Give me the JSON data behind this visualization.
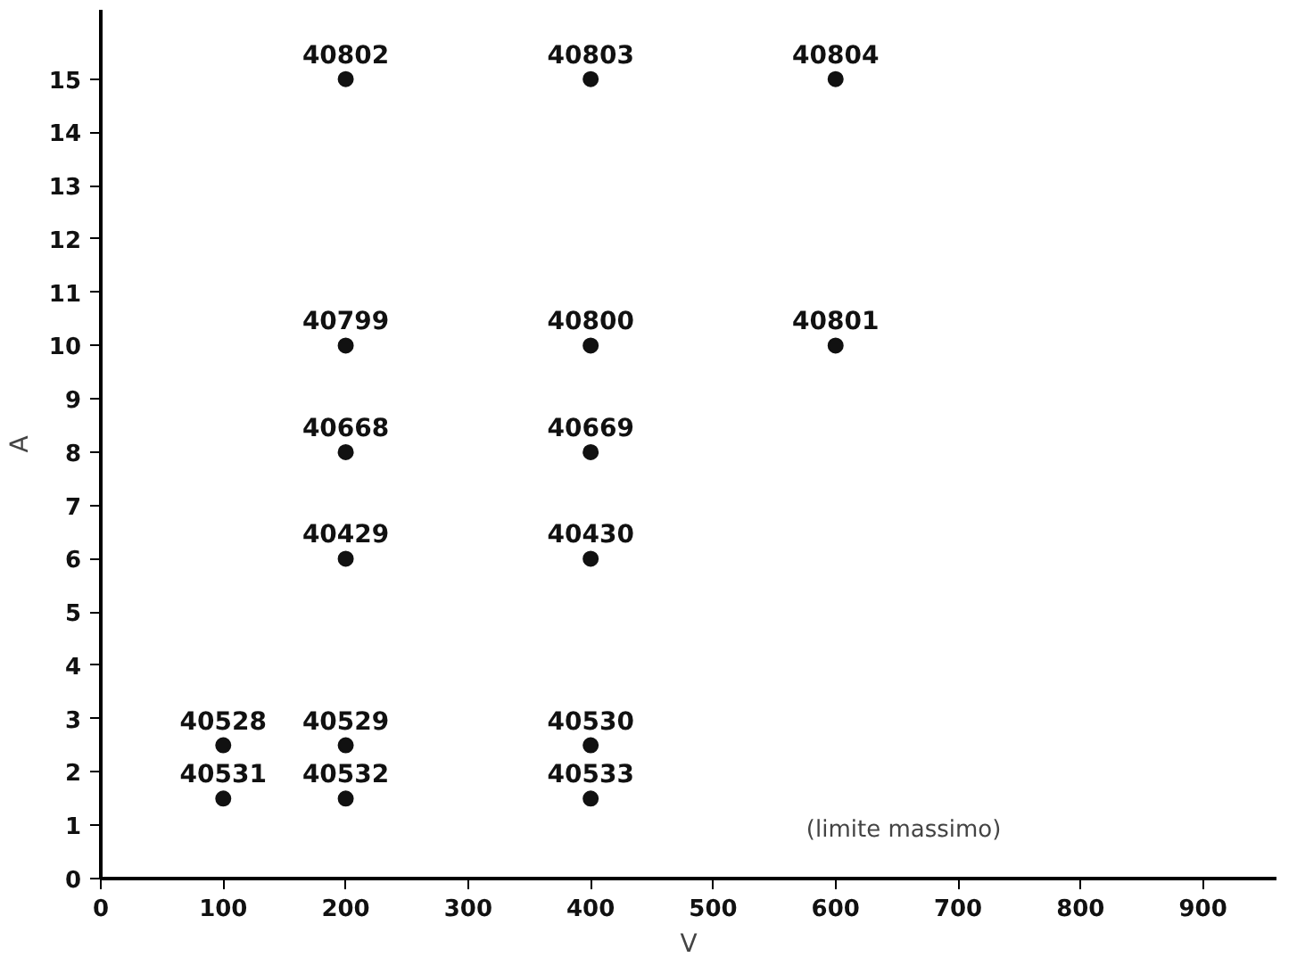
{
  "chart_data": {
    "type": "scatter",
    "xlabel": "V",
    "ylabel": "A",
    "x": [
      200,
      400,
      600,
      200,
      400,
      600,
      200,
      400,
      200,
      400,
      100,
      200,
      400,
      100,
      200,
      400
    ],
    "series": [
      {
        "color": "#111111",
        "values": [
          15,
          15,
          15,
          10,
          10,
          10,
          8,
          8,
          6,
          6,
          2.5,
          2.5,
          2.5,
          1.5,
          1.5,
          1.5
        ]
      }
    ],
    "marker": "circle",
    "xlim": [
      0,
      960
    ],
    "ylim": [
      0,
      16.3
    ],
    "xticks": [
      0,
      100,
      200,
      300,
      400,
      500,
      600,
      700,
      800,
      900
    ],
    "yticks": [
      0,
      1,
      2,
      3,
      4,
      5,
      6,
      7,
      8,
      9,
      10,
      11,
      12,
      13,
      14,
      15
    ],
    "annotations": [
      {
        "text": "40802",
        "x": 200,
        "y": 15
      },
      {
        "text": "40803",
        "x": 400,
        "y": 15
      },
      {
        "text": "40804",
        "x": 600,
        "y": 15
      },
      {
        "text": "40799",
        "x": 200,
        "y": 10
      },
      {
        "text": "40800",
        "x": 400,
        "y": 10
      },
      {
        "text": "40801",
        "x": 600,
        "y": 10
      },
      {
        "text": "40668",
        "x": 200,
        "y": 8
      },
      {
        "text": "40669",
        "x": 400,
        "y": 8
      },
      {
        "text": "40429",
        "x": 200,
        "y": 6
      },
      {
        "text": "40430",
        "x": 400,
        "y": 6
      },
      {
        "text": "40528",
        "x": 100,
        "y": 2.5
      },
      {
        "text": "40529",
        "x": 200,
        "y": 2.5
      },
      {
        "text": "40530",
        "x": 400,
        "y": 2.5
      },
      {
        "text": "40531",
        "x": 100,
        "y": 1.5
      },
      {
        "text": "40532",
        "x": 200,
        "y": 1.5
      },
      {
        "text": "40533",
        "x": 400,
        "y": 1.5
      },
      "(limite massimo)"
    ]
  }
}
